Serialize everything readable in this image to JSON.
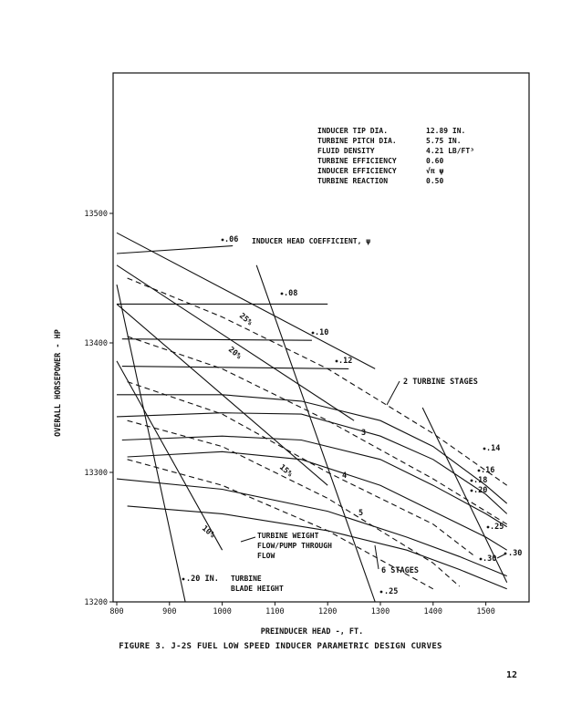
{
  "figure_caption": "FIGURE 3. J-2S FUEL LOW SPEED INDUCER PARAMETRIC DESIGN CURVES",
  "page_number": "12",
  "chart_data": {
    "type": "line",
    "xlabel": "PREINDUCER HEAD -, FT.",
    "ylabel": "OVERALL HORSEPOWER - HP",
    "xlim": [
      800,
      1550
    ],
    "ylim": [
      13200,
      13560
    ],
    "x_ticks": [
      "800",
      "900",
      "1000",
      "1100",
      "1200",
      "1300",
      "1400",
      "1500"
    ],
    "y_ticks": [
      "13200",
      "13300",
      "13400",
      "13500"
    ],
    "params": [
      [
        "INDUCER TIP DIA.",
        "12.89 IN."
      ],
      [
        "TURBINE PITCH DIA.",
        "5.75 IN."
      ],
      [
        "FLUID DENSITY",
        "4.21 LB/FT³"
      ],
      [
        "TURBINE EFFICIENCY",
        "0.60"
      ],
      [
        "INDUCER EFFICIENCY",
        "√π ψ"
      ],
      [
        "TURBINE REACTION",
        "0.50"
      ]
    ],
    "series": [
      {
        "name": ".06",
        "dash": false,
        "x": [
          800,
          1020
        ],
        "y": [
          13469,
          13475
        ]
      },
      {
        "name": ".08",
        "dash": false,
        "x": [
          800,
          1200
        ],
        "y": [
          13430,
          13430
        ]
      },
      {
        "name": ".10",
        "dash": false,
        "x": [
          810,
          1170
        ],
        "y": [
          13403,
          13402
        ]
      },
      {
        "name": ".12",
        "dash": false,
        "x": [
          810,
          1240
        ],
        "y": [
          13382,
          13380
        ]
      },
      {
        "name": ".14",
        "dash": false,
        "x": [
          800,
          1000,
          1150,
          1300,
          1400,
          1500,
          1540
        ],
        "y": [
          13360,
          13360,
          13355,
          13340,
          13320,
          13290,
          13276
        ]
      },
      {
        "name": ".16",
        "dash": false,
        "x": [
          800,
          1000,
          1150,
          1300,
          1400,
          1500,
          1540
        ],
        "y": [
          13343,
          13346,
          13345,
          13328,
          13310,
          13283,
          13268
        ]
      },
      {
        "name": ".18",
        "dash": false,
        "x": [
          810,
          1000,
          1150,
          1300,
          1400,
          1500,
          1540
        ],
        "y": [
          13325,
          13328,
          13325,
          13310,
          13290,
          13268,
          13258
        ]
      },
      {
        "name": ".20",
        "dash": false,
        "x": [
          820,
          1000,
          1150,
          1300,
          1400,
          1500,
          1540
        ],
        "y": [
          13312,
          13316,
          13310,
          13290,
          13270,
          13250,
          13240
        ]
      },
      {
        "name": ".25",
        "dash": false,
        "x": [
          800,
          1000,
          1200,
          1350,
          1450,
          1540
        ],
        "y": [
          13295,
          13287,
          13270,
          13250,
          13235,
          13220
        ]
      },
      {
        "name": ".30",
        "dash": false,
        "x": [
          820,
          1000,
          1200,
          1350,
          1450,
          1540
        ],
        "y": [
          13274,
          13268,
          13255,
          13240,
          13225,
          13210
        ]
      },
      {
        "name": "2 TURBINE STAGES",
        "dash": true,
        "x": [
          820,
          1000,
          1200,
          1400,
          1540
        ],
        "y": [
          13450,
          13420,
          13380,
          13330,
          13290
        ]
      },
      {
        "name": "3",
        "dash": true,
        "x": [
          820,
          1000,
          1200,
          1400,
          1540
        ],
        "y": [
          13405,
          13380,
          13340,
          13295,
          13260
        ]
      },
      {
        "name": "4",
        "dash": true,
        "x": [
          820,
          1000,
          1200,
          1400,
          1480
        ],
        "y": [
          13370,
          13345,
          13300,
          13260,
          13235
        ]
      },
      {
        "name": "5",
        "dash": true,
        "x": [
          820,
          1000,
          1200,
          1400,
          1450
        ],
        "y": [
          13340,
          13320,
          13280,
          13230,
          13212
        ]
      },
      {
        "name": "6 STAGES",
        "dash": true,
        "x": [
          820,
          1000,
          1200,
          1400
        ],
        "y": [
          13310,
          13290,
          13255,
          13210
        ]
      },
      {
        "name": "10%",
        "dash": false,
        "x": [
          800,
          1000
        ],
        "y": [
          13386,
          13240
        ]
      },
      {
        "name": "15%",
        "dash": false,
        "x": [
          800,
          1200
        ],
        "y": [
          13430,
          13290
        ]
      },
      {
        "name": "20%",
        "dash": false,
        "x": [
          800,
          1250
        ],
        "y": [
          13460,
          13340
        ]
      },
      {
        "name": "25%",
        "dash": false,
        "x": [
          800,
          1290
        ],
        "y": [
          13485,
          13380
        ]
      },
      {
        "name": ".20 IN.",
        "dash": false,
        "x": [
          800,
          930
        ],
        "y": [
          13445,
          13200
        ]
      },
      {
        "name": ".25 (HEIGHT)",
        "dash": false,
        "x": [
          1065,
          1290
        ],
        "y": [
          13460,
          13200
        ]
      },
      {
        "name": ".30 (HEIGHT)",
        "dash": false,
        "x": [
          1380,
          1540
        ],
        "y": [
          13350,
          13215
        ]
      }
    ],
    "annotations": {
      "inducer_head_coefficient": "INDUCER HEAD COEFFICIENT, ψ",
      "turbine_weight_flow": [
        "TURBINE WEIGHT",
        "FLOW/PUMP THROUGH",
        "FLOW"
      ],
      "turbine_blade_height": [
        "TURBINE",
        "BLADE HEIGHT"
      ],
      "psi_labels": [
        ".06",
        ".08",
        ".10",
        ".12",
        ".14",
        ".16",
        ".18",
        ".20",
        ".25",
        ".30"
      ],
      "weight_flow_labels": [
        "25%",
        "20%",
        "15%",
        "10%"
      ],
      "stage_labels": [
        "2 TURBINE STAGES",
        "3",
        "4",
        "5",
        "6 STAGES"
      ],
      "blade_height_labels": [
        ".20 IN.",
        ".25",
        ".30"
      ]
    }
  }
}
